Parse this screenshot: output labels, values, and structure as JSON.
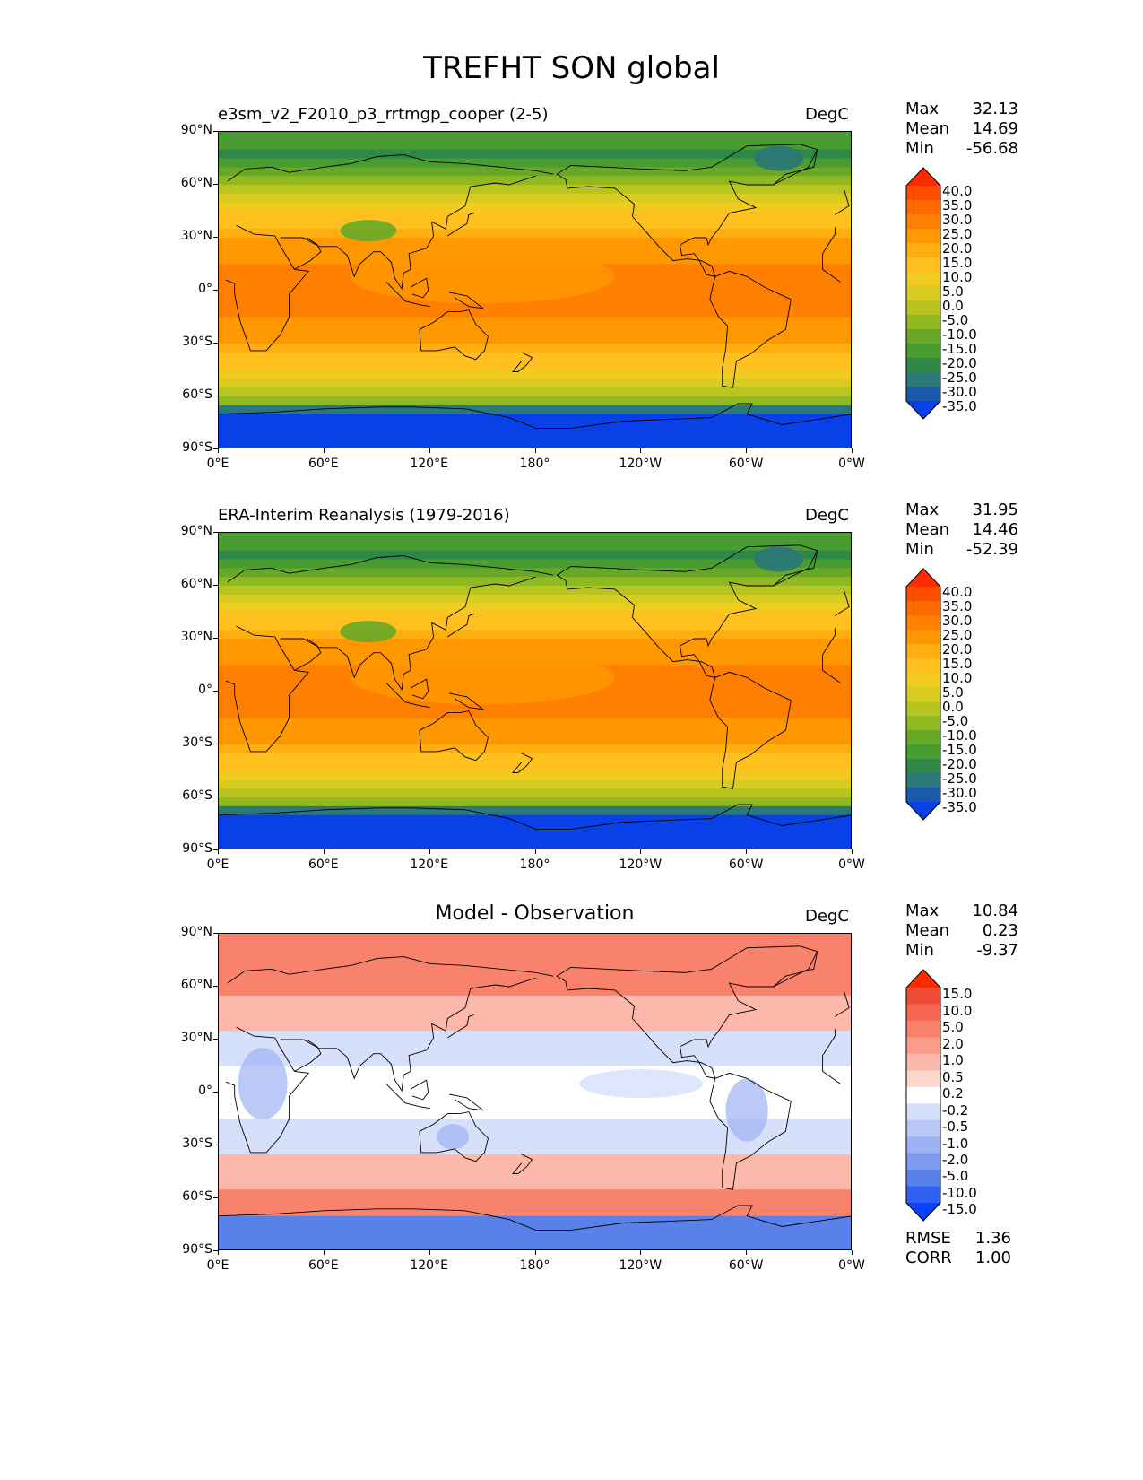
{
  "title": "TREFHT SON global",
  "axes": {
    "y_ticks": [
      "90°N",
      "60°N",
      "30°N",
      "0°",
      "30°S",
      "60°S",
      "90°S"
    ],
    "x_ticks": [
      "0°E",
      "60°E",
      "120°E",
      "180°",
      "120°W",
      "60°W",
      "0°W"
    ]
  },
  "panels": [
    {
      "id": "model",
      "title": "e3sm_v2_F2010_p3_rrtmgp_cooper (2-5)",
      "title_centered": false,
      "units": "DegC",
      "stats": [
        {
          "label": "Max",
          "value": "32.13"
        },
        {
          "label": "Mean",
          "value": "14.69"
        },
        {
          "label": "Min",
          "value": "-56.68"
        }
      ],
      "colorbar": {
        "labels": [
          "40.0",
          "35.0",
          "30.0",
          "25.0",
          "20.0",
          "15.0",
          "10.0",
          "5.0",
          "0.0",
          "-5.0",
          "-10.0",
          "-15.0",
          "-20.0",
          "-25.0",
          "-30.0",
          "-35.0"
        ],
        "colors": [
          "#ff2a00",
          "#ff4d00",
          "#ff6a00",
          "#ff8000",
          "#ff9800",
          "#ffae10",
          "#ffc020",
          "#f0cc20",
          "#d8cc20",
          "#b8c420",
          "#90b820",
          "#68a828",
          "#489c30",
          "#308848",
          "#2a7878",
          "#1a5aa8",
          "#0a40e8"
        ]
      },
      "stats_extra": []
    },
    {
      "id": "obs",
      "title": "ERA-Interim Reanalysis (1979-2016)",
      "title_centered": false,
      "units": "DegC",
      "stats": [
        {
          "label": "Max",
          "value": "31.95"
        },
        {
          "label": "Mean",
          "value": "14.46"
        },
        {
          "label": "Min",
          "value": "-52.39"
        }
      ],
      "colorbar": {
        "labels": [
          "40.0",
          "35.0",
          "30.0",
          "25.0",
          "20.0",
          "15.0",
          "10.0",
          "5.0",
          "0.0",
          "-5.0",
          "-10.0",
          "-15.0",
          "-20.0",
          "-25.0",
          "-30.0",
          "-35.0"
        ],
        "colors": [
          "#ff2a00",
          "#ff4d00",
          "#ff6a00",
          "#ff8000",
          "#ff9800",
          "#ffae10",
          "#ffc020",
          "#f0cc20",
          "#d8cc20",
          "#b8c420",
          "#90b820",
          "#68a828",
          "#489c30",
          "#308848",
          "#2a7878",
          "#1a5aa8",
          "#0a40e8"
        ]
      },
      "stats_extra": []
    },
    {
      "id": "diff",
      "title": "Model - Observation",
      "title_centered": true,
      "units": "DegC",
      "stats": [
        {
          "label": "Max",
          "value": "10.84"
        },
        {
          "label": "Mean",
          "value": "0.23"
        },
        {
          "label": "Min",
          "value": "-9.37"
        }
      ],
      "colorbar": {
        "labels": [
          "15.0",
          "10.0",
          "5.0",
          "2.0",
          "1.0",
          "0.5",
          "0.2",
          "-0.2",
          "-0.5",
          "-1.0",
          "-2.0",
          "-5.0",
          "-10.0",
          "-15.0"
        ],
        "colors": [
          "#ff2a00",
          "#f04a38",
          "#f56650",
          "#f8826c",
          "#fa9c8a",
          "#fcb8aa",
          "#fdd6cc",
          "#ffffff",
          "#d6e0fb",
          "#b8c8f6",
          "#9cb2f2",
          "#7e9aee",
          "#5a80ea",
          "#3060f0",
          "#0a40ff"
        ]
      },
      "stats_extra": [
        {
          "label": "RMSE",
          "value": "1.36"
        },
        {
          "label": "CORR",
          "value": "1.00"
        }
      ]
    }
  ]
}
